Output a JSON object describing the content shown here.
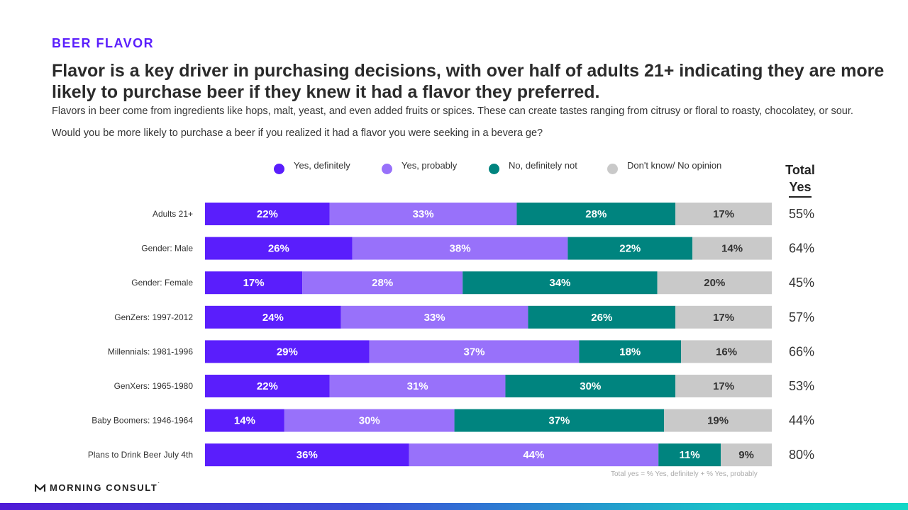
{
  "eyebrow": "BEER FLAVOR",
  "headline": "Flavor is a key driver in purchasing decisions, with over half of adults 21+ indicating they are more likely to purchase beer if they knew it had a flavor they preferred.",
  "subtitle": "Flavors in beer come from ingredients like hops, malt, yeast, and even added fruits or spices. These can create tastes ranging from citrusy or floral to roasty, chocolatey, or sour. Would you be more likely to purchase a beer if you realized it had a flavor you were seeking in a bevera ge?",
  "total_header": {
    "line1": "Total",
    "line2": "Yes"
  },
  "footnote": "Total yes = % Yes, definitely + % Yes, probably",
  "logo": {
    "text": "MORNING CONSULT",
    "mark": "˙"
  },
  "colors": {
    "yes_definitely": "#5a1efc",
    "yes_probably": "#9871fa",
    "no_definitely_not": "#00847f",
    "dont_know": "#c9c9c9",
    "accent": "#5a1efc"
  },
  "chart_data": {
    "type": "bar",
    "orientation": "horizontal",
    "stacked": true,
    "legend_position": "top",
    "categories": [
      "Adults 21+",
      "Gender: Male",
      "Gender: Female",
      "GenZers: 1997-2012",
      "Millennials: 1981-1996",
      "GenXers: 1965-1980",
      "Baby Boomers: 1946-1964",
      "Plans to Drink Beer July 4th"
    ],
    "series": [
      {
        "name": "Yes, definitely",
        "color": "#5a1efc",
        "values": [
          22,
          26,
          17,
          24,
          29,
          22,
          14,
          36
        ]
      },
      {
        "name": "Yes, probably",
        "color": "#9871fa",
        "values": [
          33,
          38,
          28,
          33,
          37,
          31,
          30,
          44
        ]
      },
      {
        "name": "No, definitely not",
        "color": "#00847f",
        "values": [
          28,
          22,
          34,
          26,
          18,
          30,
          37,
          11
        ]
      },
      {
        "name": "Don't know/ No opinion",
        "color": "#c9c9c9",
        "values": [
          17,
          14,
          20,
          17,
          16,
          17,
          19,
          9
        ]
      }
    ],
    "total_yes": [
      55,
      64,
      45,
      57,
      66,
      53,
      44,
      80
    ],
    "value_suffix": "%"
  }
}
